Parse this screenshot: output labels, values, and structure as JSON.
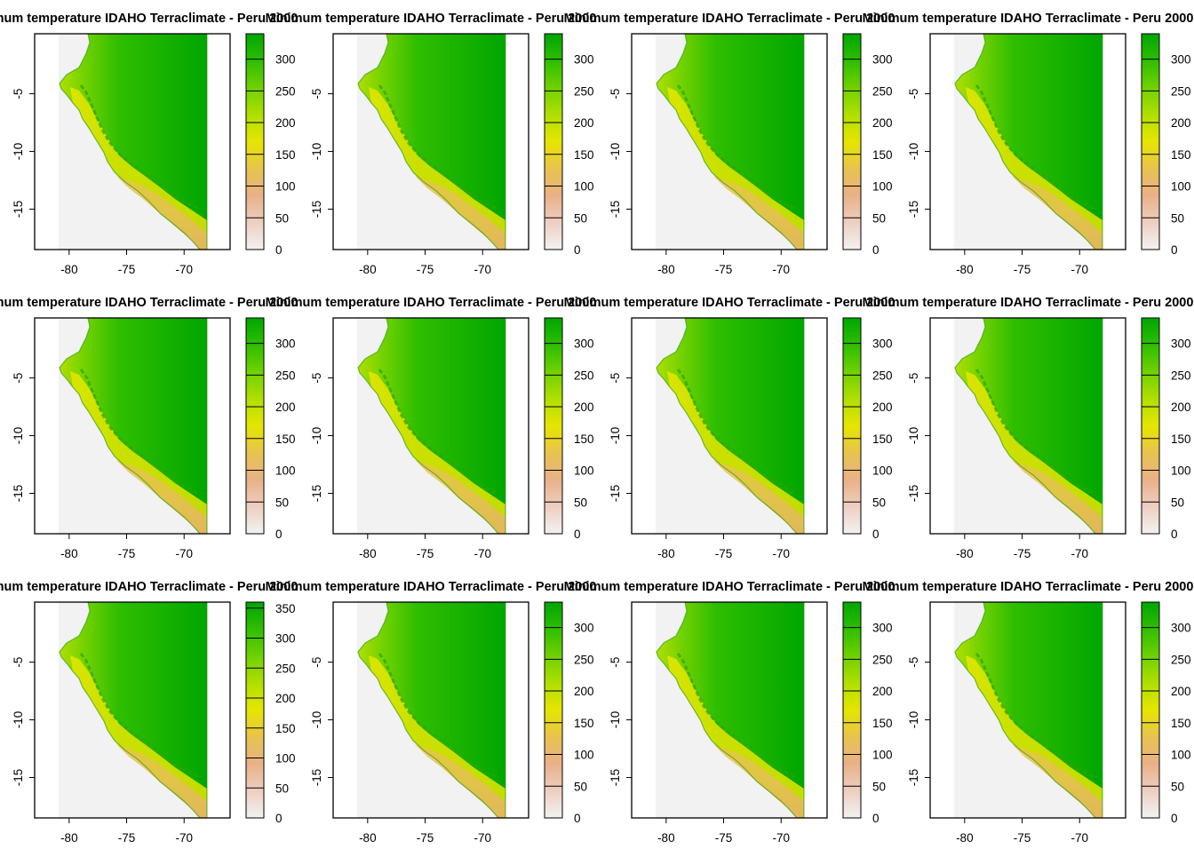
{
  "figure": {
    "panel_title": "Minimum temperature IDAHO Terraclimate - Peru 2000",
    "x_ticks": [
      "-80",
      "-75",
      "-70"
    ],
    "y_ticks": [
      "-5",
      "-10",
      "-15"
    ],
    "legend_ticks_default": [
      "0",
      "50",
      "100",
      "150",
      "200",
      "250",
      "300"
    ],
    "legend_ticks_extended": [
      "0",
      "50",
      "100",
      "150",
      "200",
      "250",
      "300",
      "350"
    ],
    "colors": {
      "ocean": "#f2f2f2",
      "frame": "#000000",
      "ramp": [
        "#f2f2f2",
        "#eecfc1",
        "#e9b188",
        "#e8c34e",
        "#e6e600",
        "#b0df00",
        "#6fd100",
        "#2fbe00",
        "#00a600"
      ]
    }
  },
  "chart_data": {
    "type": "heatmap",
    "layout": "3x4 grid of raster maps",
    "x_ticks": [
      -80,
      -75,
      -70
    ],
    "y_ticks": [
      -5,
      -10,
      -15
    ],
    "xlim": [
      -83,
      -66
    ],
    "ylim": [
      -18.5,
      0.2
    ],
    "panels": [
      {
        "legend_max": 340,
        "legend_ticks": [
          0,
          50,
          100,
          150,
          200,
          250,
          300
        ]
      },
      {
        "legend_max": 340,
        "legend_ticks": [
          0,
          50,
          100,
          150,
          200,
          250,
          300
        ]
      },
      {
        "legend_max": 340,
        "legend_ticks": [
          0,
          50,
          100,
          150,
          200,
          250,
          300
        ]
      },
      {
        "legend_max": 340,
        "legend_ticks": [
          0,
          50,
          100,
          150,
          200,
          250,
          300
        ]
      },
      {
        "legend_max": 340,
        "legend_ticks": [
          0,
          50,
          100,
          150,
          200,
          250,
          300
        ]
      },
      {
        "legend_max": 340,
        "legend_ticks": [
          0,
          50,
          100,
          150,
          200,
          250,
          300
        ]
      },
      {
        "legend_max": 340,
        "legend_ticks": [
          0,
          50,
          100,
          150,
          200,
          250,
          300
        ]
      },
      {
        "legend_max": 340,
        "legend_ticks": [
          0,
          50,
          100,
          150,
          200,
          250,
          300
        ]
      },
      {
        "legend_max": 360,
        "legend_ticks": [
          0,
          50,
          100,
          150,
          200,
          250,
          300,
          350
        ]
      },
      {
        "legend_max": 340,
        "legend_ticks": [
          0,
          50,
          100,
          150,
          200,
          250,
          300
        ]
      },
      {
        "legend_max": 340,
        "legend_ticks": [
          0,
          50,
          100,
          150,
          200,
          250,
          300
        ]
      },
      {
        "legend_max": 340,
        "legend_ticks": [
          0,
          50,
          100,
          150,
          200,
          250,
          300
        ]
      }
    ]
  }
}
